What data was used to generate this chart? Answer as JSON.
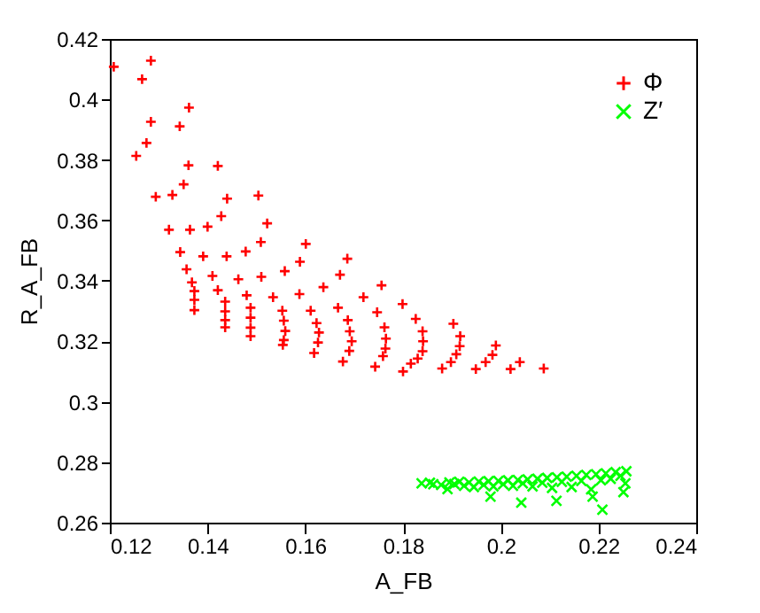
{
  "chart_data": {
    "type": "scatter",
    "xlabel": "A_FB",
    "ylabel": "R_A_FB",
    "xlim": [
      0.12,
      0.24
    ],
    "xticks": [
      0.12,
      0.14,
      0.16,
      0.18,
      0.2,
      0.22,
      0.24
    ],
    "ylim": [
      0.26,
      0.42
    ],
    "yticks": [
      0.26,
      0.28,
      0.3,
      0.32,
      0.34,
      0.36,
      0.38,
      0.4,
      0.42
    ],
    "grid": false,
    "legend": "top right",
    "series": [
      {
        "name": "Φ",
        "color": "#ff0000",
        "marker": "cross",
        "x": [
          0.1208,
          0.1284,
          0.1266,
          0.1284,
          0.1275,
          0.1254,
          0.1294,
          0.1362,
          0.1343,
          0.1361,
          0.1351,
          0.1328,
          0.1321,
          0.1364,
          0.1344,
          0.1357,
          0.1368,
          0.1373,
          0.1373,
          0.1373,
          0.1421,
          0.144,
          0.1428,
          0.14,
          0.1391,
          0.1439,
          0.141,
          0.1421,
          0.1436,
          0.1436,
          0.1436,
          0.1436,
          0.1504,
          0.1522,
          0.1509,
          0.1478,
          0.1463,
          0.151,
          0.148,
          0.1488,
          0.1488,
          0.1488,
          0.1488,
          0.1601,
          0.1589,
          0.1686,
          0.1558,
          0.1671,
          0.1534,
          0.1588,
          0.1637,
          0.1756,
          0.1719,
          0.1553,
          0.1556,
          0.1559,
          0.1556,
          0.1554,
          0.1611,
          0.1623,
          0.1628,
          0.1626,
          0.1618,
          0.1667,
          0.1687,
          0.1691,
          0.1695,
          0.169,
          0.1677,
          0.1747,
          0.1762,
          0.1765,
          0.1764,
          0.1759,
          0.1743,
          0.1799,
          0.1826,
          0.184,
          0.1841,
          0.184,
          0.183,
          0.1816,
          0.18,
          0.1903,
          0.1917,
          0.1916,
          0.1909,
          0.1898,
          0.188,
          0.199,
          0.1983,
          0.1969,
          0.1949,
          0.2039,
          0.202,
          0.2088
        ],
        "values": [
          0.4108,
          0.4128,
          0.4067,
          0.3926,
          0.3856,
          0.3813,
          0.3678,
          0.3973,
          0.3911,
          0.3782,
          0.3719,
          0.3684,
          0.3569,
          0.3569,
          0.3495,
          0.3438,
          0.3395,
          0.3366,
          0.3337,
          0.3303,
          0.378,
          0.3672,
          0.3614,
          0.3579,
          0.3481,
          0.3481,
          0.3416,
          0.3369,
          0.3331,
          0.3299,
          0.327,
          0.3246,
          0.3682,
          0.359,
          0.3528,
          0.3497,
          0.3405,
          0.3413,
          0.3352,
          0.3311,
          0.3278,
          0.3245,
          0.3217,
          0.3522,
          0.3463,
          0.3473,
          0.3432,
          0.342,
          0.3346,
          0.3356,
          0.3379,
          0.3385,
          0.3346,
          0.3301,
          0.3268,
          0.3234,
          0.3204,
          0.3188,
          0.3301,
          0.326,
          0.3229,
          0.3196,
          0.3161,
          0.3311,
          0.327,
          0.3233,
          0.32,
          0.3168,
          0.3133,
          0.3296,
          0.3246,
          0.3209,
          0.3176,
          0.3151,
          0.3116,
          0.3323,
          0.3274,
          0.3233,
          0.32,
          0.3167,
          0.3143,
          0.3126,
          0.31,
          0.3258,
          0.3217,
          0.3184,
          0.3157,
          0.3131,
          0.311,
          0.3186,
          0.3155,
          0.3131,
          0.3108,
          0.3131,
          0.3108,
          0.311
        ]
      },
      {
        "name": "Z′",
        "color": "#00ff00",
        "marker": "x",
        "x": [
          0.1838,
          0.1855,
          0.1862,
          0.1878,
          0.1891,
          0.1895,
          0.1905,
          0.1915,
          0.1925,
          0.1935,
          0.1945,
          0.1955,
          0.1965,
          0.1975,
          0.1979,
          0.1985,
          0.1995,
          0.2005,
          0.2015,
          0.2025,
          0.2035,
          0.2042,
          0.2045,
          0.2055,
          0.2065,
          0.2075,
          0.2085,
          0.2095,
          0.2105,
          0.2114,
          0.2115,
          0.2125,
          0.2135,
          0.2145,
          0.2155,
          0.2165,
          0.2175,
          0.2185,
          0.2188,
          0.2195,
          0.2205,
          0.2208,
          0.2215,
          0.2225,
          0.2235,
          0.2245,
          0.2251,
          0.2257,
          0.2255
        ],
        "values": [
          0.273,
          0.2732,
          0.2727,
          0.2725,
          0.2711,
          0.2733,
          0.2728,
          0.2735,
          0.2722,
          0.2733,
          0.2718,
          0.2736,
          0.2725,
          0.2737,
          0.2686,
          0.272,
          0.2738,
          0.2727,
          0.274,
          0.2722,
          0.2741,
          0.2666,
          0.273,
          0.2743,
          0.272,
          0.2745,
          0.2732,
          0.2748,
          0.2715,
          0.2672,
          0.275,
          0.2735,
          0.2752,
          0.2718,
          0.2755,
          0.2738,
          0.2758,
          0.271,
          0.2686,
          0.276,
          0.274,
          0.2643,
          0.2763,
          0.2745,
          0.2767,
          0.2755,
          0.2701,
          0.277,
          0.273
        ]
      }
    ]
  }
}
